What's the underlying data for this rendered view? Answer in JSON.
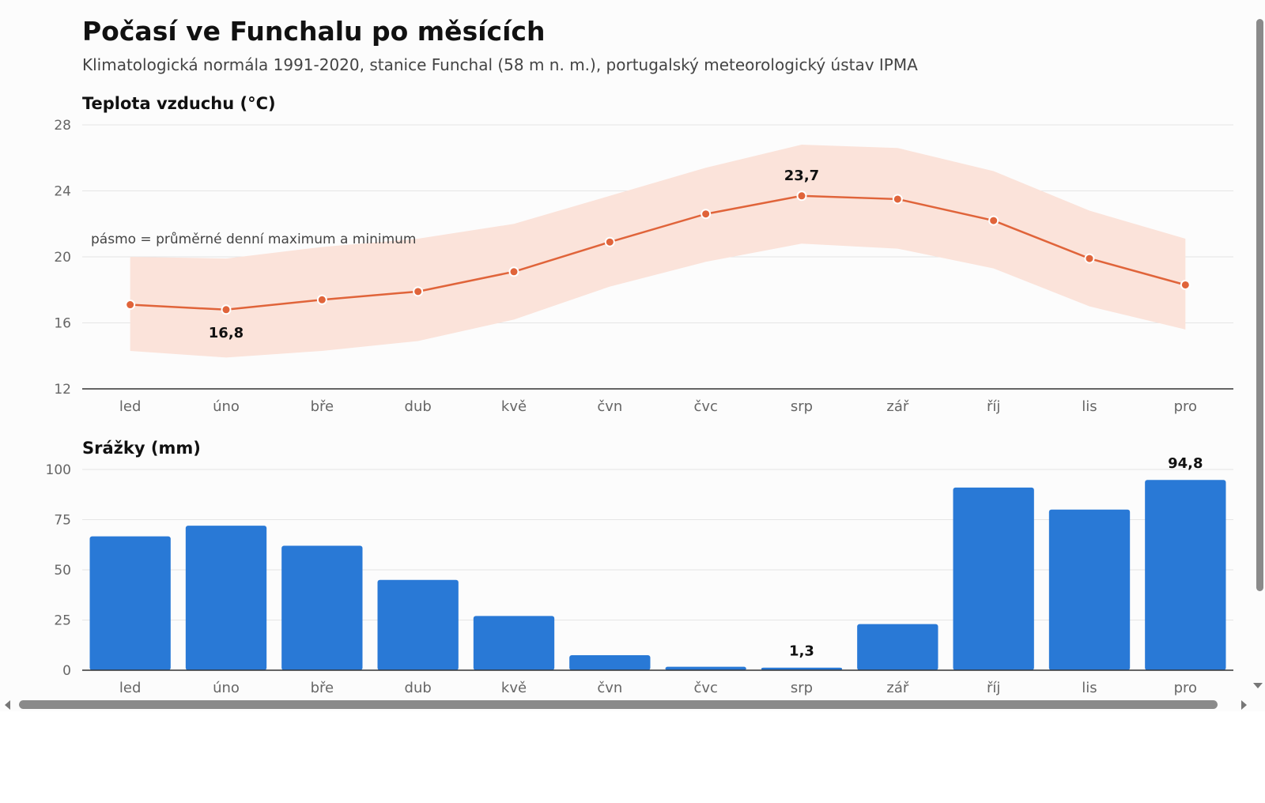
{
  "title": "Počasí ve Funchalu po měsících",
  "subtitle": "Klimatologická normála 1991-2020, stanice Funchal (58 m n. m.), portugalský meteorologický ústav IPMA",
  "colors": {
    "line": "#e0643a",
    "band": "#fbe3da",
    "bar": "#2979d6",
    "grid": "#e5e5e5",
    "axis": "#333333"
  },
  "chart_data": [
    {
      "type": "line",
      "title": "Teplota vzduchu (°C)",
      "categories": [
        "led",
        "úno",
        "bře",
        "dub",
        "kvě",
        "čvn",
        "čvc",
        "srp",
        "zář",
        "říj",
        "lis",
        "pro"
      ],
      "series": [
        {
          "values": [
            17.1,
            16.8,
            17.4,
            17.9,
            19.1,
            20.9,
            22.6,
            23.7,
            23.5,
            22.2,
            19.9,
            18.3
          ]
        }
      ],
      "band": {
        "max": [
          20.0,
          19.9,
          20.6,
          21.1,
          22.0,
          23.7,
          25.4,
          26.8,
          26.6,
          25.2,
          22.8,
          21.1
        ],
        "min": [
          14.3,
          13.9,
          14.3,
          14.9,
          16.2,
          18.2,
          19.7,
          20.8,
          20.5,
          19.3,
          17.0,
          15.6
        ]
      },
      "annotation": "pásmo = průměrné denní maximum a minimum",
      "data_labels": [
        {
          "index": 1,
          "text": "16,8"
        },
        {
          "index": 7,
          "text": "23,7"
        }
      ],
      "ylim": [
        12,
        28
      ],
      "yticks": [
        12,
        16,
        20,
        24,
        28
      ],
      "grid": true
    },
    {
      "type": "bar",
      "title": "Srážky (mm)",
      "categories": [
        "led",
        "úno",
        "bře",
        "dub",
        "kvě",
        "čvn",
        "čvc",
        "srp",
        "zář",
        "říj",
        "lis",
        "pro"
      ],
      "values": [
        66.7,
        72.0,
        62.0,
        45.0,
        27.0,
        7.5,
        1.7,
        1.3,
        23.0,
        91.0,
        80.0,
        94.8
      ],
      "data_labels": [
        {
          "index": 7,
          "text": "1,3"
        },
        {
          "index": 11,
          "text": "94,8"
        }
      ],
      "ylim": [
        0,
        100
      ],
      "yticks": [
        0,
        25,
        50,
        75,
        100
      ],
      "grid": true
    }
  ]
}
